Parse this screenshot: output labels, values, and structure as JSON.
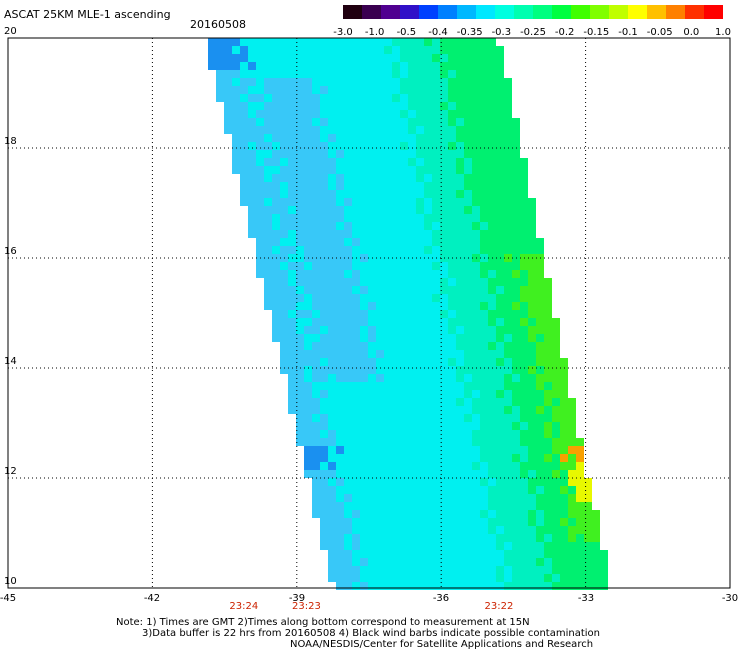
{
  "header": {
    "title": "ASCAT 25KM MLE-1 ascending",
    "date": "20160508"
  },
  "colorbar": {
    "labels": [
      "-3.0",
      "-1.0",
      "-0.5",
      "-0.4",
      "-0.35",
      "-0.3",
      "-0.25",
      "-0.2",
      "-0.15",
      "-0.1",
      "-0.05",
      "0.0",
      "1.0"
    ],
    "colors": [
      "#200010",
      "#3a0050",
      "#500090",
      "#3010c8",
      "#0040ff",
      "#0080ff",
      "#00b8ff",
      "#00e8ff",
      "#00ffe0",
      "#00ffb0",
      "#00ff80",
      "#00ff40",
      "#40ff00",
      "#80ff00",
      "#c0ff00",
      "#ffff00",
      "#ffc000",
      "#ff8000",
      "#ff3000",
      "#ff0000"
    ]
  },
  "axes": {
    "lon_ticks": [
      "-45",
      "-42",
      "-39",
      "-36",
      "-33",
      "-30"
    ],
    "lat_ticks": [
      "20",
      "18",
      "16",
      "14",
      "12",
      "10"
    ],
    "time_labels": [
      {
        "lon": -40.1,
        "text": "23:24"
      },
      {
        "lon": -38.8,
        "text": "23:23"
      },
      {
        "lon": -34.8,
        "text": "23:22"
      }
    ]
  },
  "notes": [
    "Note: 1) Times are GMT 2)Times along bottom correspond to measurement at 15N",
    "3)Data buffer is 22 hrs from 20160508 4) Black wind barbs indicate possible contamination",
    "NOAA/NESDIS/Center for Satellite Applications and Research"
  ],
  "swath_colors": {
    "blue": "#1a90f0",
    "light_blue": "#38c8f8",
    "cyan": "#00f0f0",
    "teal": "#00f0c0",
    "green": "#00f070",
    "lime": "#40f020",
    "yellow": "#e8f800",
    "orange": "#f8a000"
  }
}
